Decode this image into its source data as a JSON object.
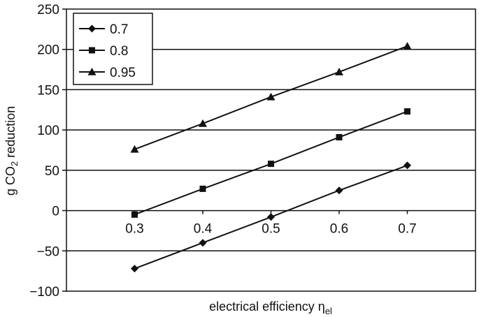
{
  "chart_data": {
    "type": "line",
    "x": [
      0.3,
      0.4,
      0.5,
      0.6,
      0.7
    ],
    "x_tick_labels": [
      "0.3",
      "0.4",
      "0.5",
      "0.6",
      "0.7"
    ],
    "series": [
      {
        "name": "0.7",
        "marker": "diamond",
        "values": [
          -72,
          -40,
          -8,
          25,
          56
        ]
      },
      {
        "name": "0.8",
        "marker": "square",
        "values": [
          -5,
          27,
          58,
          91,
          123
        ]
      },
      {
        "name": "0.95",
        "marker": "triangle",
        "values": [
          76,
          108,
          141,
          172,
          204
        ]
      }
    ],
    "ylim": [
      -100,
      250
    ],
    "y_ticks": [
      -100,
      -50,
      0,
      50,
      100,
      150,
      200,
      250
    ],
    "y_tick_labels": [
      "−100",
      "−50",
      "0",
      "50",
      "100",
      "150",
      "200",
      "250"
    ],
    "ylabel": {
      "prefix": "g CO",
      "subscript": "2",
      "suffix": " reduction"
    },
    "xlabel": {
      "text": "electrical efficiency η",
      "subscript": "el"
    },
    "grid": "horizontal",
    "legend": "top-left",
    "line_color": "#111111"
  }
}
